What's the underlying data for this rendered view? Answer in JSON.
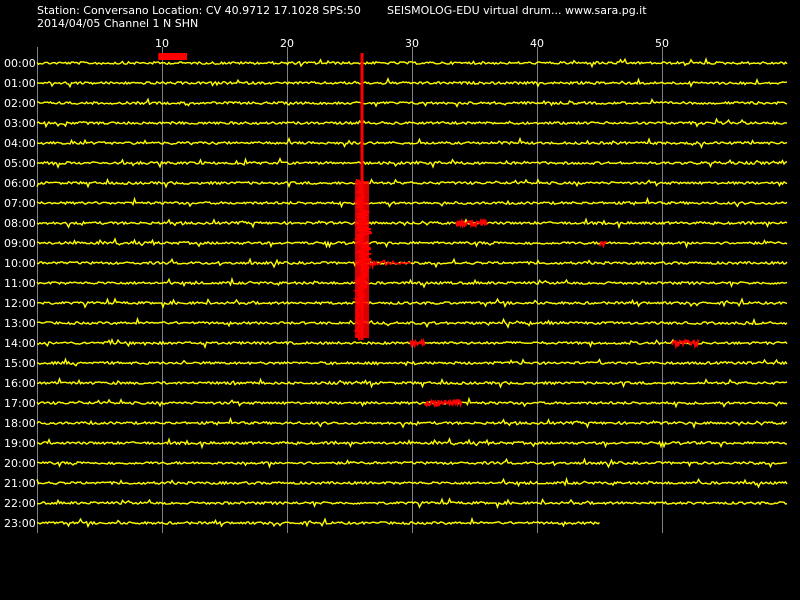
{
  "header": {
    "station_line": "Station: Conversano Location: CV 40.9712 17.1028 SPS:50",
    "brand_line": "SEISMOLOG-EDU virtual drum... www.sara.pg.it",
    "date_line": "2014/04/05  Channel 1 N SHN"
  },
  "colors": {
    "background": "#000000",
    "trace": "#ffff00",
    "event": "#ff0000",
    "grid": "#808080",
    "text": "#ffffff"
  },
  "drum": {
    "minute_ticks": [
      "10",
      "20",
      "30",
      "40",
      "50"
    ],
    "minute_tick_values": [
      10,
      20,
      30,
      40,
      50
    ],
    "hours": [
      "00:00",
      "01:00",
      "02:00",
      "03:00",
      "04:00",
      "05:00",
      "06:00",
      "07:00",
      "08:00",
      "09:00",
      "10:00",
      "11:00",
      "12:00",
      "13:00",
      "14:00",
      "15:00",
      "16:00",
      "17:00",
      "18:00",
      "19:00",
      "20:00",
      "21:00",
      "22:00",
      "23:00"
    ],
    "last_trace_end_minute": 45,
    "events": [
      {
        "hour": 0,
        "start_min": 9.7,
        "end_min": 12.0,
        "kind": "block"
      },
      {
        "hour": 0,
        "start_min": 25.8,
        "end_min": 26.2,
        "kind": "main-shock"
      },
      {
        "hour": 8,
        "start_min": 33.5,
        "end_min": 36.0,
        "kind": "small"
      },
      {
        "hour": 9,
        "start_min": 45.0,
        "end_min": 45.6,
        "kind": "small"
      },
      {
        "hour": 14,
        "start_min": 29.8,
        "end_min": 31.0,
        "kind": "small"
      },
      {
        "hour": 14,
        "start_min": 50.8,
        "end_min": 53.0,
        "kind": "small"
      },
      {
        "hour": 17,
        "start_min": 31.0,
        "end_min": 34.0,
        "kind": "small"
      }
    ]
  }
}
